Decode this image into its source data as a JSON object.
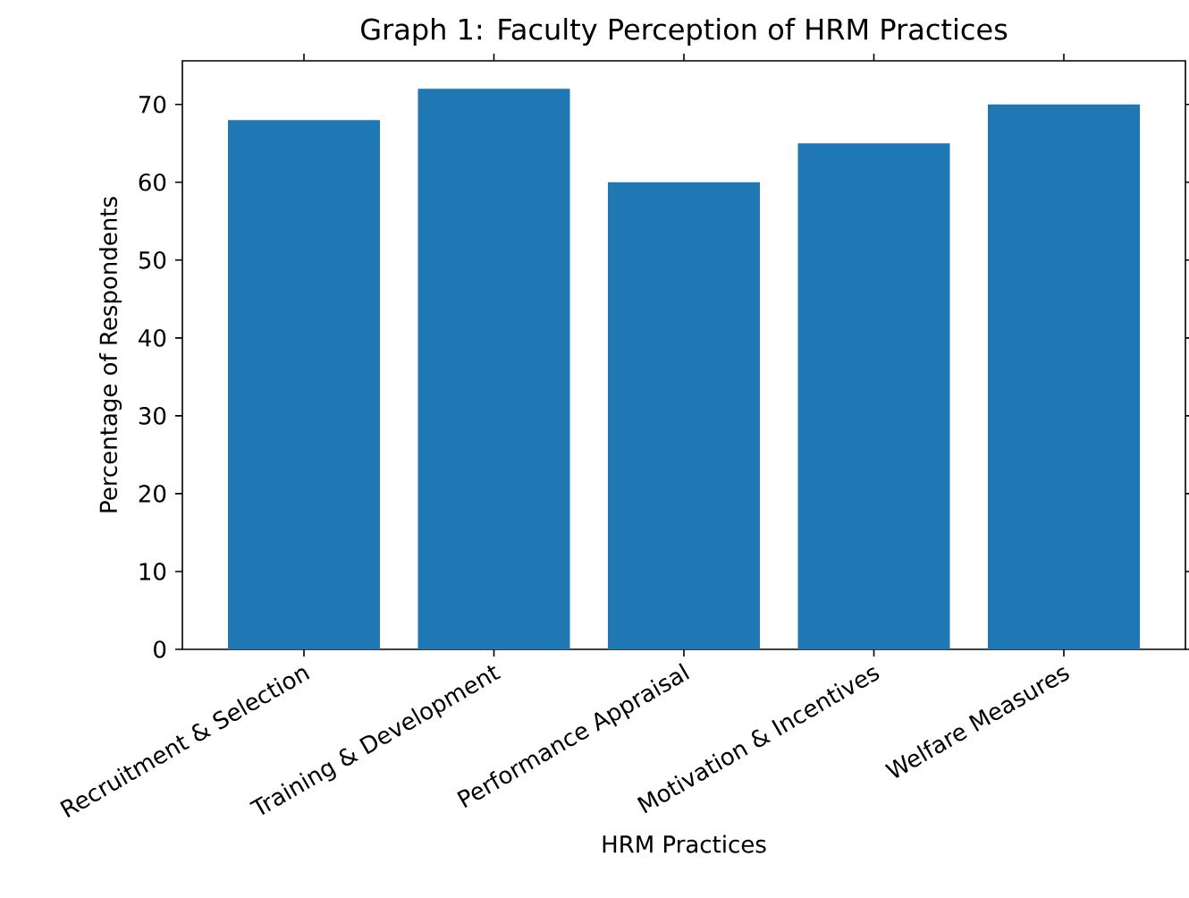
{
  "chart_data": {
    "type": "bar",
    "title": "Graph 1: Faculty Perception of HRM Practices",
    "xlabel": "HRM Practices",
    "ylabel": "Percentage of Respondents",
    "categories": [
      "Recruitment & Selection",
      "Training & Development",
      "Performance Appraisal",
      "Motivation & Incentives",
      "Welfare Measures"
    ],
    "values": [
      68,
      72,
      60,
      65,
      70
    ],
    "color": "#1f77b4",
    "ylim": [
      0,
      75.6
    ],
    "yticks": [
      0,
      10,
      20,
      30,
      40,
      50,
      60,
      70
    ]
  }
}
